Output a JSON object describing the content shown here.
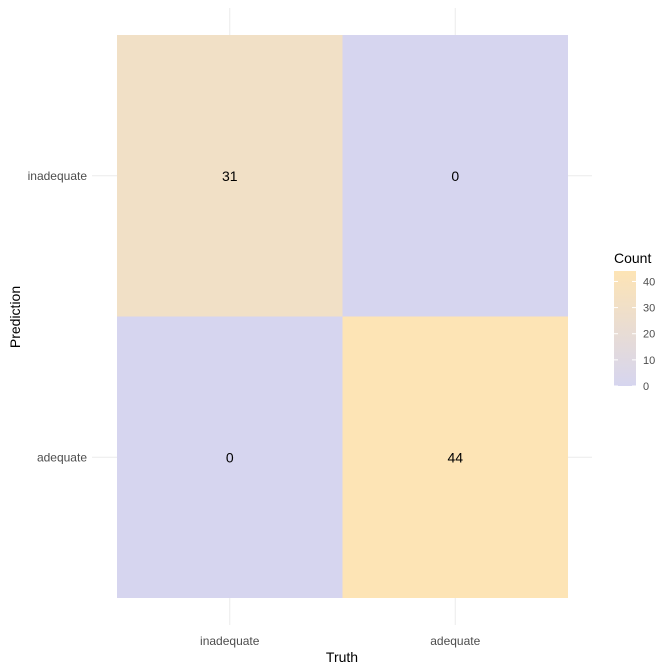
{
  "chart_data": {
    "type": "heatmap",
    "xlabel": "Truth",
    "ylabel": "Prediction",
    "x_categories": [
      "inadequate",
      "adequate"
    ],
    "y_categories": [
      "inadequate",
      "adequate"
    ],
    "cells": [
      {
        "truth": "inadequate",
        "prediction": "inadequate",
        "value": 31
      },
      {
        "truth": "adequate",
        "prediction": "inadequate",
        "value": 0
      },
      {
        "truth": "inadequate",
        "prediction": "adequate",
        "value": 0
      },
      {
        "truth": "adequate",
        "prediction": "adequate",
        "value": 44
      }
    ],
    "legend": {
      "title": "Count",
      "placement": "right",
      "breaks": [
        0,
        10,
        20,
        30,
        40
      ],
      "range": [
        0,
        44
      ],
      "low_color": "#d6d5ef",
      "high_color": "#fde4b5"
    },
    "grid": true
  }
}
